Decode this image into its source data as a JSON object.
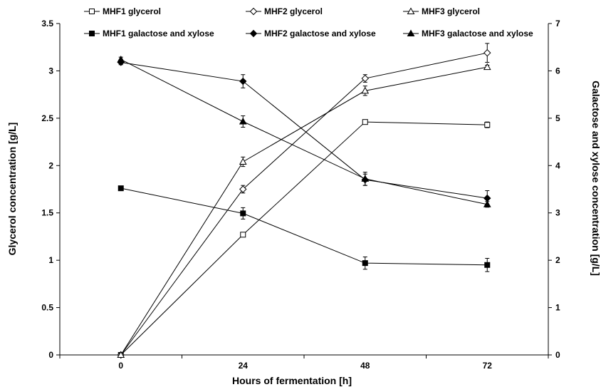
{
  "chart_data": {
    "type": "line",
    "x": [
      0,
      24,
      48,
      72
    ],
    "xlabel": "Hours of fermentation [h]",
    "ylabel": "Glycerol concentration [g/L]",
    "y2label": "Galactose and xylose concentration [g/L]",
    "xticks": [
      "0",
      "24",
      "48",
      "72"
    ],
    "ylim": [
      0,
      3.5
    ],
    "y2lim": [
      0,
      7
    ],
    "yticks": [
      "0",
      "0.5",
      "1",
      "1.5",
      "2",
      "2.5",
      "3",
      "3.5"
    ],
    "y2ticks": [
      "0",
      "1",
      "2",
      "3",
      "4",
      "5",
      "6",
      "7"
    ],
    "grid": false,
    "legend_position": "top",
    "series": [
      {
        "name": "MHF1 glycerol",
        "axis": "left",
        "marker": "square-open",
        "values": [
          0,
          1.27,
          2.46,
          2.43
        ],
        "errors": [
          0,
          0.02,
          0.02,
          0.03
        ]
      },
      {
        "name": "MHF2 glycerol",
        "axis": "left",
        "marker": "diamond-open",
        "values": [
          0,
          1.75,
          2.92,
          3.19
        ],
        "errors": [
          0,
          0.04,
          0.04,
          0.1
        ]
      },
      {
        "name": "MHF3 glycerol",
        "axis": "left",
        "marker": "triangle-open",
        "values": [
          0,
          2.04,
          2.79,
          3.04
        ],
        "errors": [
          0,
          0.05,
          0.05,
          0.02
        ]
      },
      {
        "name": "MHF1 galactose and xylose",
        "axis": "right",
        "marker": "square-filled",
        "values": [
          3.52,
          2.99,
          1.94,
          1.9
        ],
        "errors": [
          0,
          0.12,
          0.13,
          0.14
        ]
      },
      {
        "name": "MHF2 galactose and xylose",
        "axis": "right",
        "marker": "diamond-filled",
        "values": [
          6.18,
          5.78,
          3.7,
          3.31
        ],
        "errors": [
          0.05,
          0.14,
          0.12,
          0.16
        ]
      },
      {
        "name": "MHF3 galactose and xylose",
        "axis": "right",
        "marker": "triangle-filled",
        "values": [
          6.24,
          4.93,
          3.72,
          3.18
        ],
        "errors": [
          0.05,
          0.12,
          0.14,
          0.06
        ]
      }
    ]
  }
}
